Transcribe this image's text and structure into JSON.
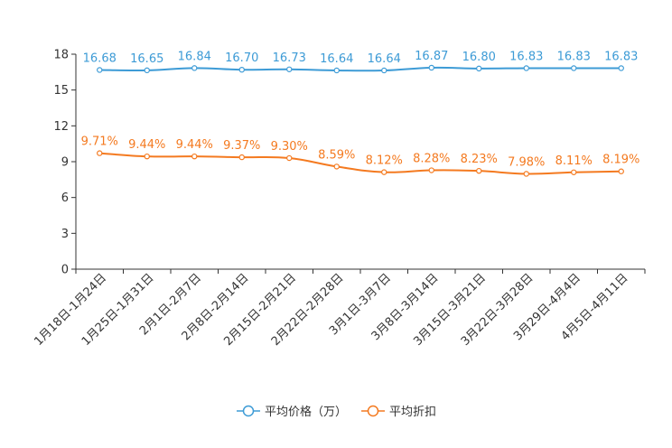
{
  "chart_data": {
    "type": "line",
    "title": "",
    "xlabel": "",
    "ylabel": "",
    "ylim": [
      0,
      18
    ],
    "yticks": [
      0,
      3,
      6,
      9,
      12,
      15,
      18
    ],
    "grid": false,
    "legend_position": "bottom-center",
    "categories": [
      "1月18日-1月24日",
      "1月25日-1月31日",
      "2月1日-2月7日",
      "2月8日-2月14日",
      "2月15日-2月21日",
      "2月22日-2月28日",
      "3月1日-3月7日",
      "3月8日-3月14日",
      "3月15日-3月21日",
      "3月22日-3月28日",
      "3月29日-4月4日",
      "4月5日-4月11日"
    ],
    "series": [
      {
        "name": "平均价格（万）",
        "color": "#3d9bd6",
        "values": [
          16.68,
          16.65,
          16.84,
          16.7,
          16.73,
          16.64,
          16.64,
          16.87,
          16.8,
          16.83,
          16.83,
          16.83
        ],
        "labels": [
          "16.68",
          "16.65",
          "16.84",
          "16.70",
          "16.73",
          "16.64",
          "16.64",
          "16.87",
          "16.80",
          "16.83",
          "16.83",
          "16.83"
        ]
      },
      {
        "name": "平均折扣",
        "color": "#f47a20",
        "values": [
          9.71,
          9.44,
          9.44,
          9.37,
          9.3,
          8.59,
          8.12,
          8.28,
          8.23,
          7.98,
          8.11,
          8.19
        ],
        "labels": [
          "9.71%",
          "9.44%",
          "9.44%",
          "9.37%",
          "9.30%",
          "8.59%",
          "8.12%",
          "8.28%",
          "8.23%",
          "7.98%",
          "8.11%",
          "8.19%"
        ]
      }
    ]
  }
}
